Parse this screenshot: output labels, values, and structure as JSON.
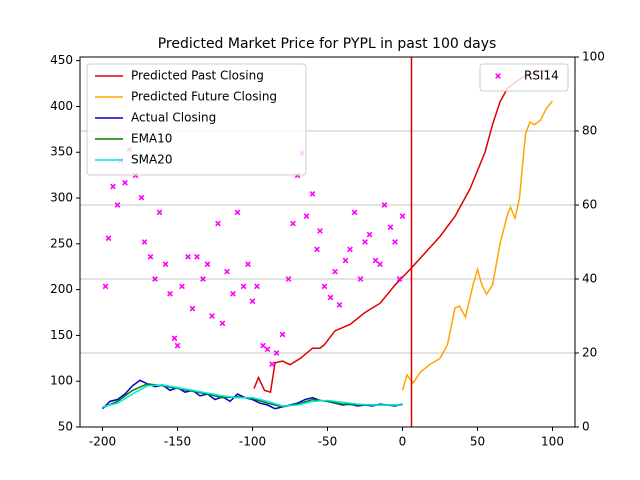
{
  "chart_data": {
    "type": "line",
    "title": "Predicted Market Price for PYPL in past 100 days",
    "xlim": [
      -215,
      115
    ],
    "xticks": [
      -200,
      -150,
      -100,
      -50,
      0,
      50,
      100
    ],
    "ylim": [
      50,
      454
    ],
    "yticks": [
      50,
      100,
      150,
      200,
      250,
      300,
      350,
      400,
      450
    ],
    "y2lim": [
      0,
      100
    ],
    "y2ticks": [
      0,
      20,
      40,
      60,
      80,
      100
    ],
    "grid": "y2",
    "legend": "upper left",
    "legend2": "upper right",
    "vline": {
      "x": 6,
      "color": "#e00000"
    },
    "series": [
      {
        "name": "Predicted Past Closing",
        "color": "#e00000",
        "x": [
          -99,
          -96,
          -92,
          -88,
          -85,
          -80,
          -75,
          -68,
          -60,
          -55,
          -52,
          -45,
          -35,
          -25,
          -15,
          -5,
          5,
          15,
          25,
          35,
          45,
          55,
          60,
          65,
          70,
          80,
          90,
          98
        ],
        "values": [
          92,
          104,
          90,
          88,
          120,
          122,
          118,
          125,
          136,
          136,
          140,
          155,
          162,
          175,
          185,
          205,
          222,
          240,
          258,
          280,
          310,
          350,
          380,
          405,
          420,
          432,
          438,
          440
        ]
      },
      {
        "name": "Predicted Future Closing",
        "color": "#ffa500",
        "x": [
          0,
          3,
          7,
          12,
          18,
          25,
          30,
          35,
          38,
          42,
          47,
          50,
          53,
          56,
          60,
          65,
          70,
          72,
          75,
          78,
          82,
          85,
          88,
          92,
          96,
          100
        ],
        "values": [
          90,
          107,
          98,
          110,
          118,
          125,
          140,
          180,
          182,
          170,
          205,
          222,
          205,
          195,
          205,
          250,
          282,
          290,
          278,
          300,
          370,
          383,
          380,
          385,
          398,
          406
        ]
      },
      {
        "name": "Actual Closing",
        "color": "#0000cc",
        "x": [
          -200,
          -195,
          -190,
          -185,
          -180,
          -175,
          -170,
          -165,
          -160,
          -155,
          -150,
          -145,
          -140,
          -135,
          -130,
          -125,
          -120,
          -115,
          -110,
          -105,
          -100,
          -95,
          -90,
          -85,
          -80,
          -75,
          -70,
          -65,
          -60,
          -55,
          -50,
          -45,
          -40,
          -35,
          -30,
          -25,
          -20,
          -15,
          -10,
          -5,
          0
        ],
        "values": [
          70,
          78,
          80,
          86,
          95,
          101,
          97,
          94,
          96,
          90,
          93,
          88,
          90,
          84,
          86,
          80,
          83,
          78,
          86,
          82,
          80,
          76,
          74,
          70,
          72,
          74,
          76,
          80,
          82,
          79,
          78,
          76,
          74,
          75,
          73,
          74,
          73,
          75,
          74,
          73,
          75
        ]
      },
      {
        "name": "EMA10",
        "color": "#008000",
        "x": [
          -200,
          -190,
          -180,
          -170,
          -160,
          -150,
          -140,
          -130,
          -120,
          -110,
          -100,
          -90,
          -80,
          -70,
          -60,
          -50,
          -40,
          -30,
          -20,
          -10,
          0
        ],
        "values": [
          71,
          78,
          90,
          97,
          95,
          92,
          89,
          86,
          82,
          83,
          81,
          76,
          72,
          75,
          80,
          78,
          75,
          74,
          74,
          74,
          74
        ]
      },
      {
        "name": "SMA20",
        "color": "#00e5e5",
        "x": [
          -200,
          -190,
          -180,
          -170,
          -160,
          -150,
          -140,
          -130,
          -120,
          -110,
          -100,
          -90,
          -80,
          -70,
          -60,
          -50,
          -40,
          -30,
          -20,
          -10,
          0
        ],
        "values": [
          72,
          76,
          86,
          95,
          96,
          93,
          90,
          87,
          84,
          82,
          82,
          78,
          73,
          74,
          78,
          79,
          77,
          75,
          74,
          74,
          74
        ]
      },
      {
        "name": "RSI14",
        "color": "#ff00ff",
        "axis": "y2",
        "kind": "scatter",
        "x": [
          -198,
          -196,
          -193,
          -190,
          -188,
          -185,
          -182,
          -178,
          -174,
          -172,
          -168,
          -165,
          -162,
          -158,
          -155,
          -152,
          -150,
          -147,
          -143,
          -140,
          -137,
          -133,
          -130,
          -127,
          -123,
          -120,
          -117,
          -113,
          -110,
          -106,
          -103,
          -100,
          -97,
          -93,
          -90,
          -87,
          -84,
          -80,
          -76,
          -73,
          -70,
          -67,
          -64,
          -60,
          -57,
          -55,
          -52,
          -48,
          -45,
          -42,
          -38,
          -35,
          -32,
          -28,
          -25,
          -22,
          -18,
          -15,
          -12,
          -8,
          -5,
          -2,
          0
        ],
        "values": [
          38,
          51,
          65,
          60,
          72,
          66,
          75,
          68,
          62,
          50,
          46,
          40,
          58,
          44,
          36,
          24,
          22,
          38,
          46,
          32,
          46,
          40,
          44,
          30,
          55,
          28,
          42,
          36,
          58,
          38,
          44,
          34,
          38,
          22,
          21,
          17,
          20,
          25,
          40,
          55,
          68,
          74,
          57,
          63,
          48,
          53,
          38,
          35,
          42,
          33,
          45,
          48,
          58,
          40,
          50,
          52,
          45,
          44,
          60,
          54,
          50,
          40,
          57
        ]
      }
    ]
  }
}
